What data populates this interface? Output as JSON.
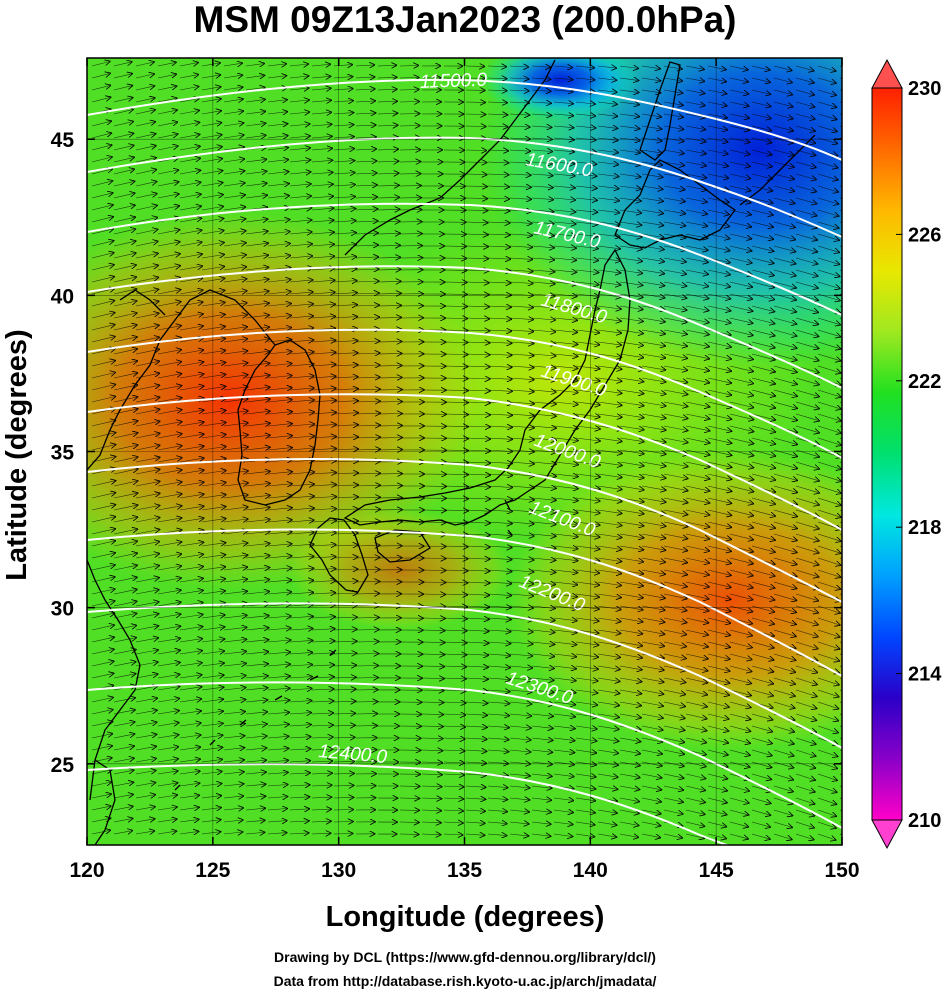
{
  "title": "MSM 09Z13Jan2023 (200.0hPa)",
  "xaxis": {
    "label": "Longitude (degrees)",
    "ticks": [
      "120",
      "125",
      "130",
      "135",
      "140",
      "145",
      "150"
    ],
    "range": [
      120,
      150
    ]
  },
  "yaxis": {
    "label": "Latitude  (degrees)",
    "ticks": [
      "25",
      "30",
      "35",
      "40",
      "45"
    ],
    "range": [
      22.4,
      47.6
    ]
  },
  "colorbar": {
    "ticks": [
      "230",
      "226",
      "222",
      "218",
      "214",
      "210"
    ],
    "range": [
      210,
      230
    ],
    "colors": [
      "#ff00c8",
      "#8a00c8",
      "#2a00c8",
      "#0046ff",
      "#00a0ff",
      "#00e8e0",
      "#00e070",
      "#20e020",
      "#a0e820",
      "#e8e800",
      "#ffb800",
      "#ff6a00",
      "#ff2000"
    ]
  },
  "contours": {
    "color": "#ffffff",
    "labels": [
      "11500.0",
      "11600.0",
      "11700.0",
      "11800.0",
      "11900.0",
      "12000.0",
      "12100.0",
      "12200.0",
      "12300.0",
      "12400.0"
    ]
  },
  "credits": {
    "line1": "Drawing by DCL (https://www.gfd-dennou.org/library/dcl/)",
    "line2": "Data from http://database.rish.kyoto-u.ac.jp/arch/jmadata/"
  },
  "field": {
    "variable": "temperature",
    "warm_core_lon_lat": [
      126.5,
      38
    ],
    "warm_east_lon_lat": [
      146.5,
      30.5
    ],
    "cold_core_lon_lat": [
      146,
      44
    ]
  },
  "wind_vectors": {
    "direction": "eastward",
    "color": "#000000"
  }
}
